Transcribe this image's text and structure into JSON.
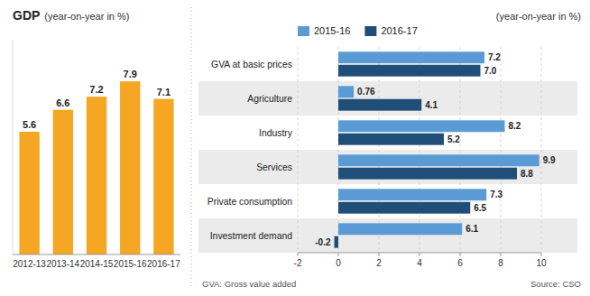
{
  "chart_data": [
    {
      "type": "bar",
      "title": "GDP",
      "subtitle": "(year-on-year in %)",
      "categories": [
        "2012-13",
        "2013-14",
        "2014-15",
        "2015-16",
        "2016-17"
      ],
      "values": [
        5.6,
        6.6,
        7.2,
        7.9,
        7.1
      ],
      "color": "#F5A623",
      "ylim": [
        0,
        9.8
      ],
      "tick_labels": "x",
      "data_labels": true
    },
    {
      "type": "bar",
      "orientation": "horizontal",
      "subtitle": "(year-on-year in %)",
      "categories": [
        "GVA at basic prices",
        "Agriculture",
        "Industry",
        "Services",
        "Private consumption",
        "Investment demand"
      ],
      "series": [
        {
          "name": "2015-16",
          "color": "#5B9BD5",
          "values": [
            7.2,
            0.76,
            8.2,
            9.9,
            7.3,
            6.1
          ]
        },
        {
          "name": "2016-17",
          "color": "#1F4E79",
          "values": [
            7.0,
            4.1,
            5.2,
            8.8,
            6.5,
            -0.2
          ],
          "value_labels": [
            "7.0",
            "4.1",
            "5.2",
            "8.8",
            "6.5",
            "-0.2"
          ]
        }
      ],
      "xlim": [
        -2,
        10
      ],
      "xticks": [
        -2,
        0,
        2,
        4,
        6,
        8,
        10
      ],
      "grid": true,
      "legend": "top",
      "data_labels": true,
      "annotations": [
        "GVA: Gross value added",
        "Source: CSO"
      ]
    }
  ]
}
